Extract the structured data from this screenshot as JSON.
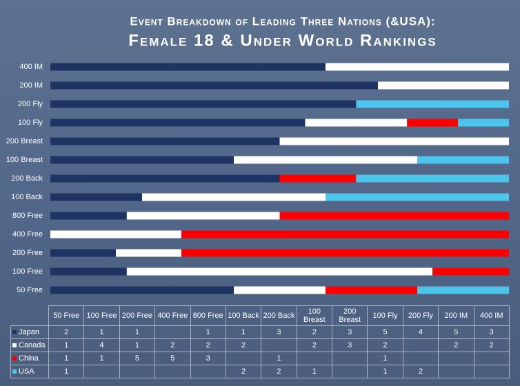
{
  "chart_data": {
    "type": "stacked_bar_100",
    "title": "Event Breakdown of Leading Three Nations (&USA):",
    "subtitle": "Female 18 & Under World Rankings",
    "categories": [
      "50 Free",
      "100 Free",
      "200 Free",
      "400 Free",
      "800 Free",
      "100 Back",
      "200 Back",
      "100 Breast",
      "200 Breast",
      "100 Fly",
      "200 Fly",
      "200 IM",
      "400 IM"
    ],
    "series": [
      {
        "name": "Japan",
        "color": "#1f3462",
        "values": [
          2,
          1,
          1,
          null,
          1,
          1,
          3,
          2,
          3,
          5,
          4,
          5,
          3
        ]
      },
      {
        "name": "Canada",
        "color": "#ffffff",
        "values": [
          1,
          4,
          1,
          2,
          2,
          2,
          null,
          2,
          3,
          2,
          null,
          2,
          2
        ]
      },
      {
        "name": "China",
        "color": "#ff0000",
        "values": [
          1,
          1,
          5,
          5,
          3,
          null,
          1,
          null,
          null,
          1,
          null,
          null,
          null
        ]
      },
      {
        "name": "USA",
        "color": "#4dc4ec",
        "values": [
          1,
          null,
          null,
          null,
          null,
          2,
          2,
          1,
          null,
          1,
          2,
          null,
          null
        ]
      }
    ]
  }
}
